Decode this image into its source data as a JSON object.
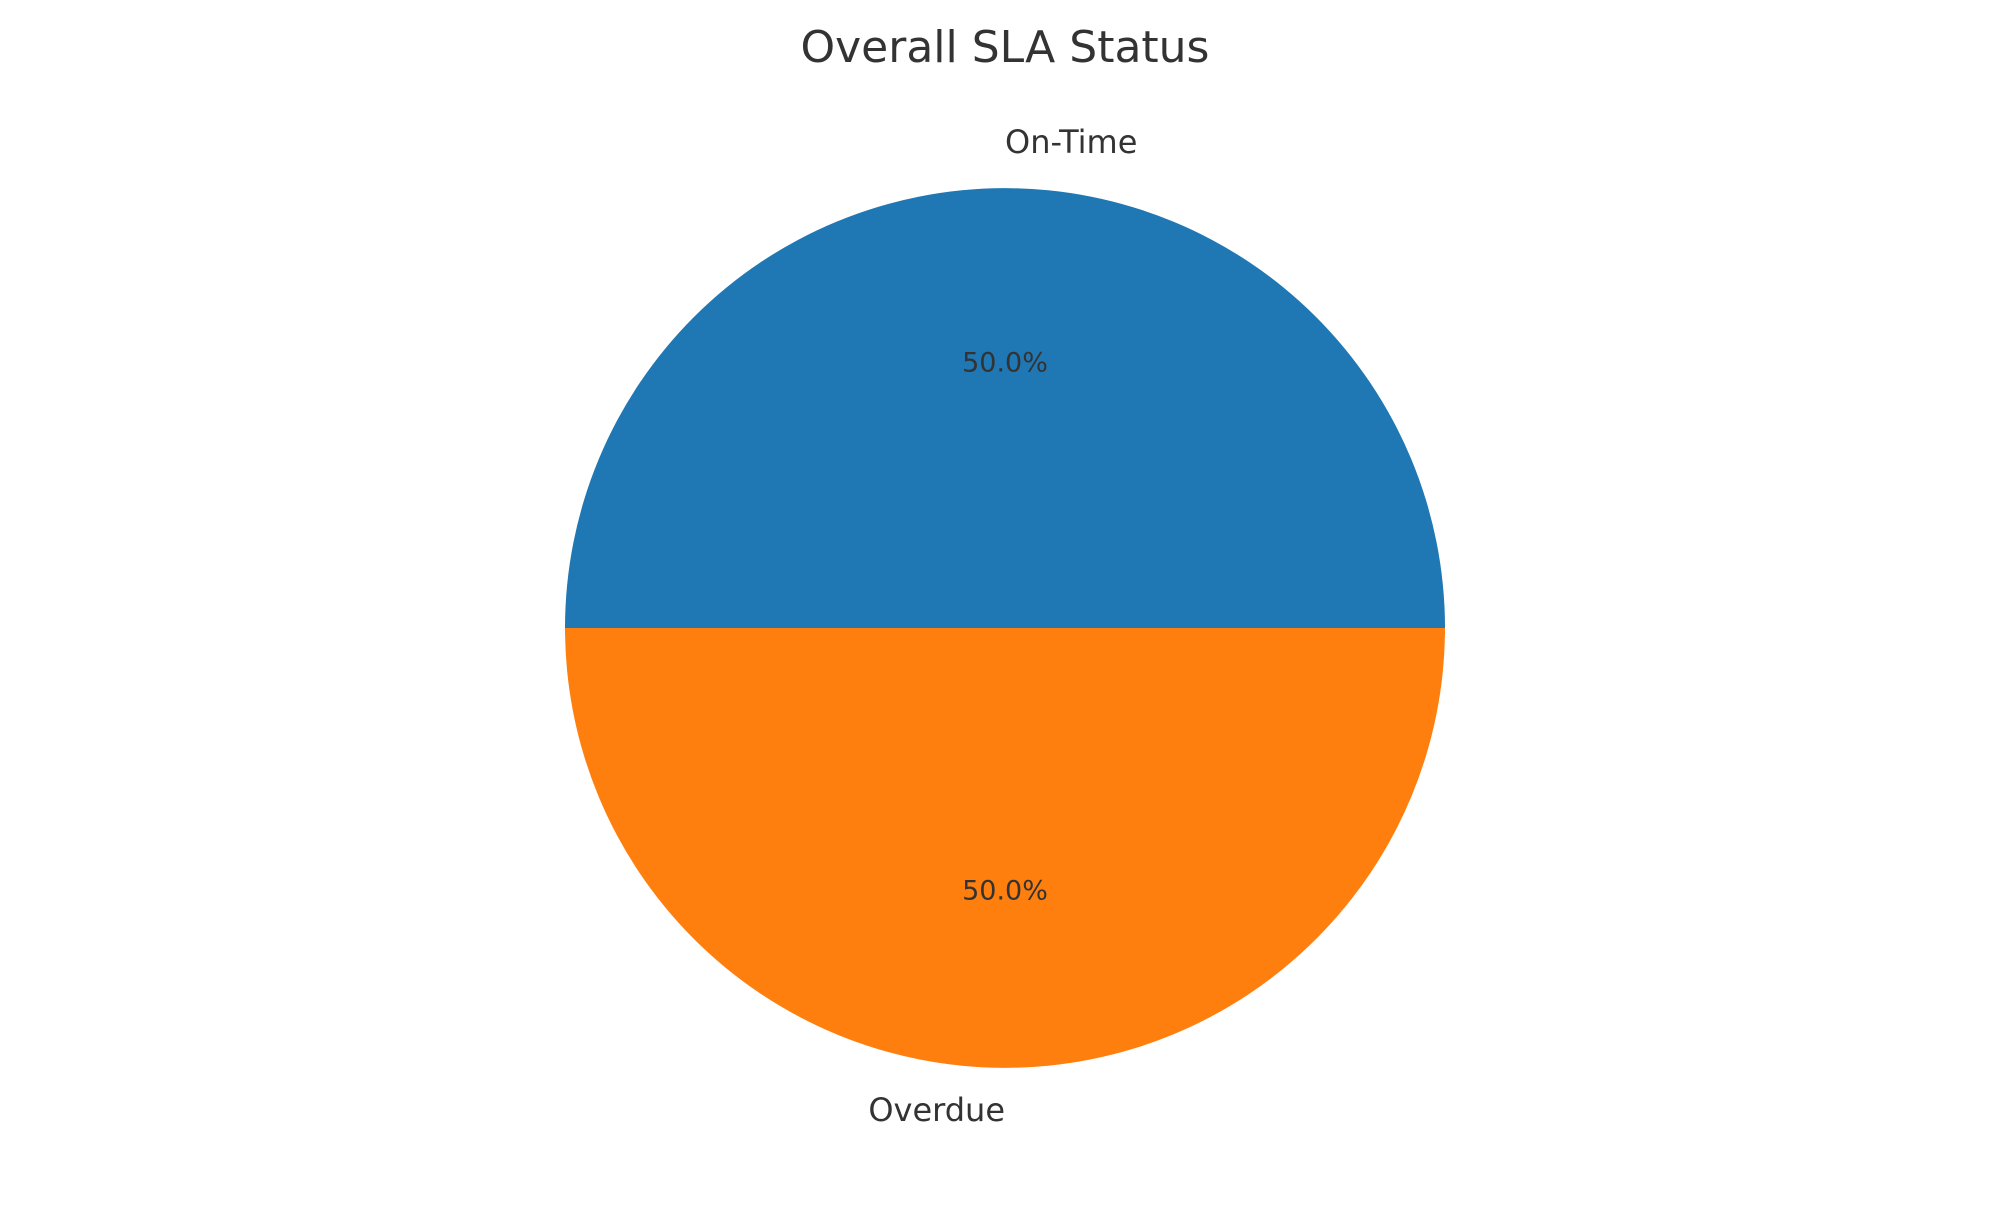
{
  "chart_data": {
    "type": "pie",
    "title": "Overall SLA Status",
    "labels": [
      "On-Time",
      "Overdue"
    ],
    "values": [
      50.0,
      50.0
    ],
    "percent_labels": [
      "50.0%",
      "50.0%"
    ],
    "colors": [
      "#1f77b4",
      "#ff7f0e"
    ],
    "start_angle_deg": 0,
    "direction": "counterclockwise",
    "legend": "none"
  }
}
